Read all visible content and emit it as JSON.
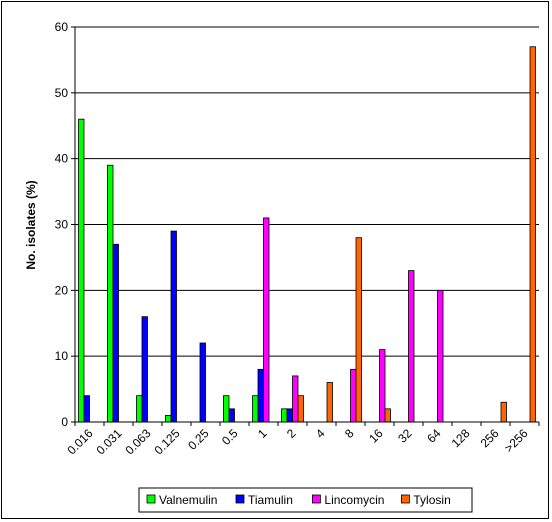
{
  "chart_data": {
    "type": "bar",
    "title": "",
    "xlabel": "",
    "ylabel": "No. isolates (%)",
    "ylim": [
      0,
      60
    ],
    "yticks": [
      "0",
      "10",
      "20",
      "30",
      "40",
      "50",
      "60"
    ],
    "grid": true,
    "legend_position": "bottom",
    "categories": [
      "0.016",
      "0.031",
      "0.063",
      "0.125",
      "0.25",
      "0.5",
      "1",
      "2",
      "4",
      "8",
      "16",
      "32",
      "64",
      "128",
      "256",
      ">256"
    ],
    "series": [
      {
        "name": "Valnemulin",
        "color": "#00ff00",
        "values": [
          46,
          39,
          4,
          1,
          0,
          4,
          4,
          2,
          0,
          0,
          0,
          0,
          0,
          0,
          0,
          0
        ]
      },
      {
        "name": "Tiamulin",
        "color": "#0000ff",
        "values": [
          4,
          27,
          16,
          29,
          12,
          2,
          8,
          2,
          0,
          0,
          0,
          0,
          0,
          0,
          0,
          0
        ]
      },
      {
        "name": "Lincomycin",
        "color": "#ff00ff",
        "values": [
          0,
          0,
          0,
          0,
          0,
          0,
          31,
          7,
          0,
          8,
          11,
          23,
          20,
          0,
          0,
          0
        ]
      },
      {
        "name": "Tylosin",
        "color": "#ff6600",
        "values": [
          0,
          0,
          0,
          0,
          0,
          0,
          0,
          4,
          6,
          28,
          2,
          0,
          0,
          0,
          3,
          57
        ]
      }
    ]
  }
}
